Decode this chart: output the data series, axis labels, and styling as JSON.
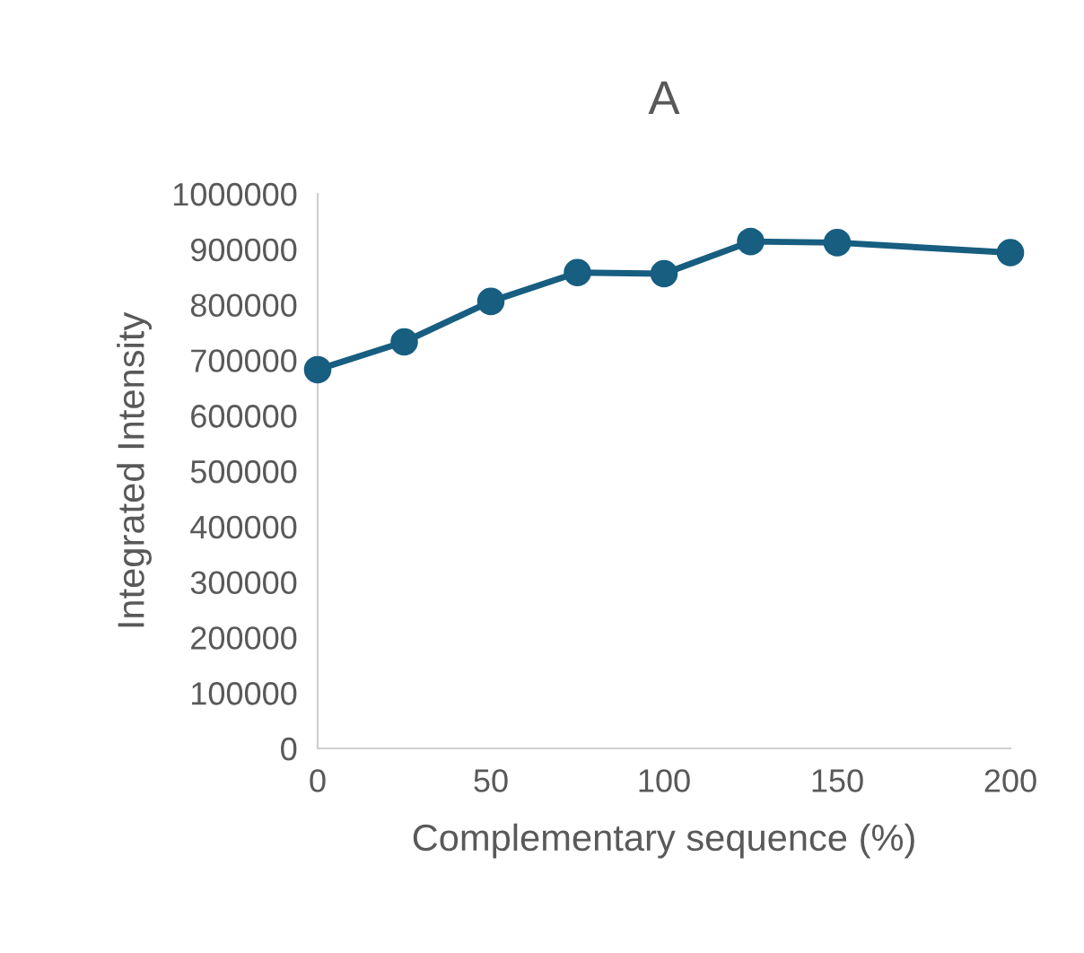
{
  "chart_data": {
    "type": "line",
    "title": "A",
    "xlabel": "Complementary sequence (%)",
    "ylabel": "Integrated Intensity",
    "x": [
      0,
      25,
      50,
      75,
      100,
      125,
      150,
      200
    ],
    "series": [
      {
        "color": "#175e80",
        "values": [
          683000,
          733000,
          806000,
          858000,
          856000,
          914000,
          912000,
          894000
        ]
      }
    ],
    "xlim": [
      0,
      200
    ],
    "xticks": [
      0,
      50,
      100,
      150,
      200
    ],
    "ylim": [
      0,
      1000000
    ],
    "yticks": [
      0,
      100000,
      200000,
      300000,
      400000,
      500000,
      600000,
      700000,
      800000,
      900000,
      1000000
    ],
    "grid": false,
    "legend": false,
    "marker": "circle",
    "line_style": "solid"
  }
}
